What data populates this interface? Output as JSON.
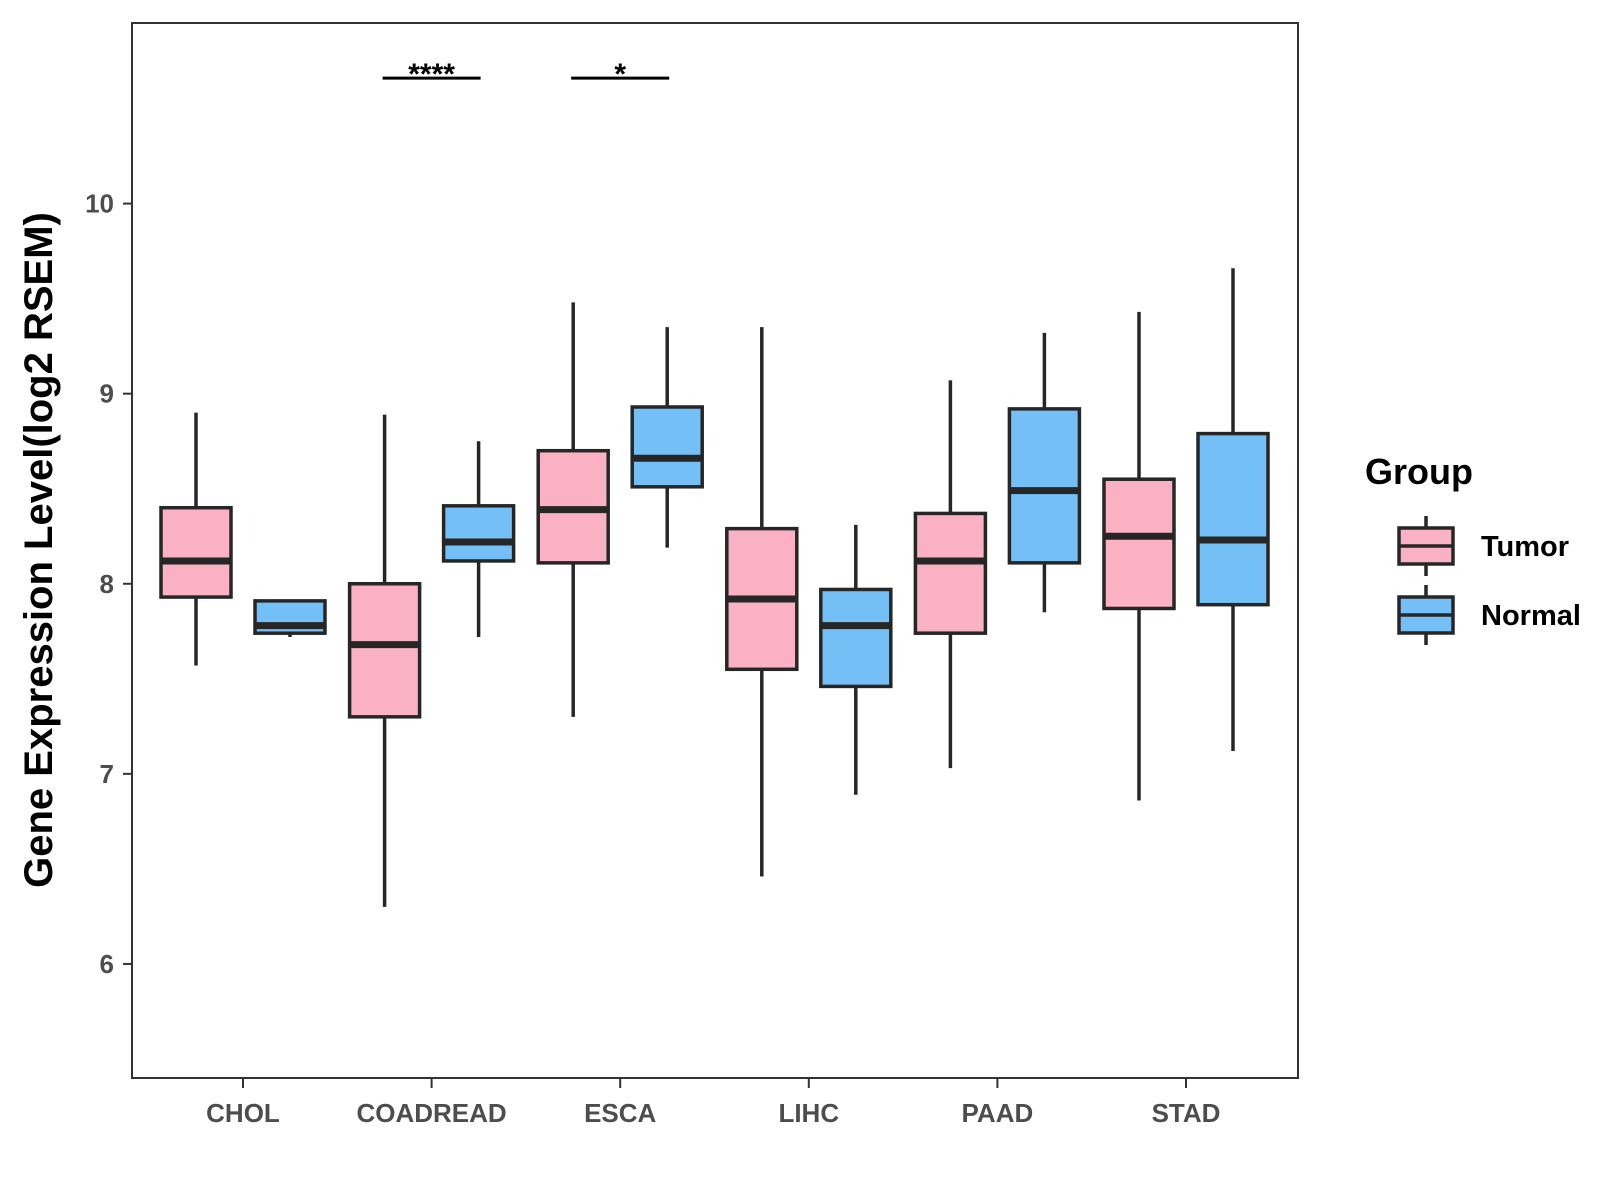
{
  "chart_data": {
    "type": "box",
    "title": "",
    "xlabel": "",
    "ylabel": "Gene Expression Level(log2 RSEM)",
    "ylim": [
      5.4,
      10.95
    ],
    "yticks": [
      6,
      7,
      8,
      9,
      10
    ],
    "categories": [
      "CHOL",
      "COADREAD",
      "ESCA",
      "LIHC",
      "PAAD",
      "STAD"
    ],
    "legend": {
      "title": "Group",
      "position": "right",
      "entries": [
        {
          "name": "Tumor",
          "color": "#F9B1C3"
        },
        {
          "name": "Normal",
          "color": "#74C0F6"
        }
      ]
    },
    "series": [
      {
        "name": "Tumor",
        "color": "#F9B1C3",
        "boxes": [
          {
            "category": "CHOL",
            "min": 7.57,
            "q1": 7.93,
            "median": 8.12,
            "q3": 8.4,
            "max": 8.9
          },
          {
            "category": "COADREAD",
            "min": 6.3,
            "q1": 7.3,
            "median": 7.68,
            "q3": 8.0,
            "max": 8.89
          },
          {
            "category": "ESCA",
            "min": 7.3,
            "q1": 8.11,
            "median": 8.39,
            "q3": 8.7,
            "max": 9.48
          },
          {
            "category": "LIHC",
            "min": 6.46,
            "q1": 7.55,
            "median": 7.92,
            "q3": 8.29,
            "max": 9.35
          },
          {
            "category": "PAAD",
            "min": 7.03,
            "q1": 7.74,
            "median": 8.12,
            "q3": 8.37,
            "max": 9.07
          },
          {
            "category": "STAD",
            "min": 6.86,
            "q1": 7.87,
            "median": 8.25,
            "q3": 8.55,
            "max": 9.43
          }
        ]
      },
      {
        "name": "Normal",
        "color": "#74C0F6",
        "boxes": [
          {
            "category": "CHOL",
            "min": 7.72,
            "q1": 7.74,
            "median": 7.78,
            "q3": 7.91,
            "max": 7.91
          },
          {
            "category": "COADREAD",
            "min": 7.72,
            "q1": 8.12,
            "median": 8.22,
            "q3": 8.41,
            "max": 8.75
          },
          {
            "category": "ESCA",
            "min": 8.19,
            "q1": 8.51,
            "median": 8.66,
            "q3": 8.93,
            "max": 9.35
          },
          {
            "category": "LIHC",
            "min": 6.89,
            "q1": 7.46,
            "median": 7.78,
            "q3": 7.97,
            "max": 8.31
          },
          {
            "category": "PAAD",
            "min": 7.85,
            "q1": 8.11,
            "median": 8.49,
            "q3": 8.92,
            "max": 9.32
          },
          {
            "category": "STAD",
            "min": 7.12,
            "q1": 7.89,
            "median": 8.23,
            "q3": 8.79,
            "max": 9.66
          }
        ]
      }
    ],
    "annotations": [
      {
        "category": "COADREAD",
        "label": "****",
        "y": 10.66
      },
      {
        "category": "ESCA",
        "label": "*",
        "y": 10.66
      }
    ]
  }
}
